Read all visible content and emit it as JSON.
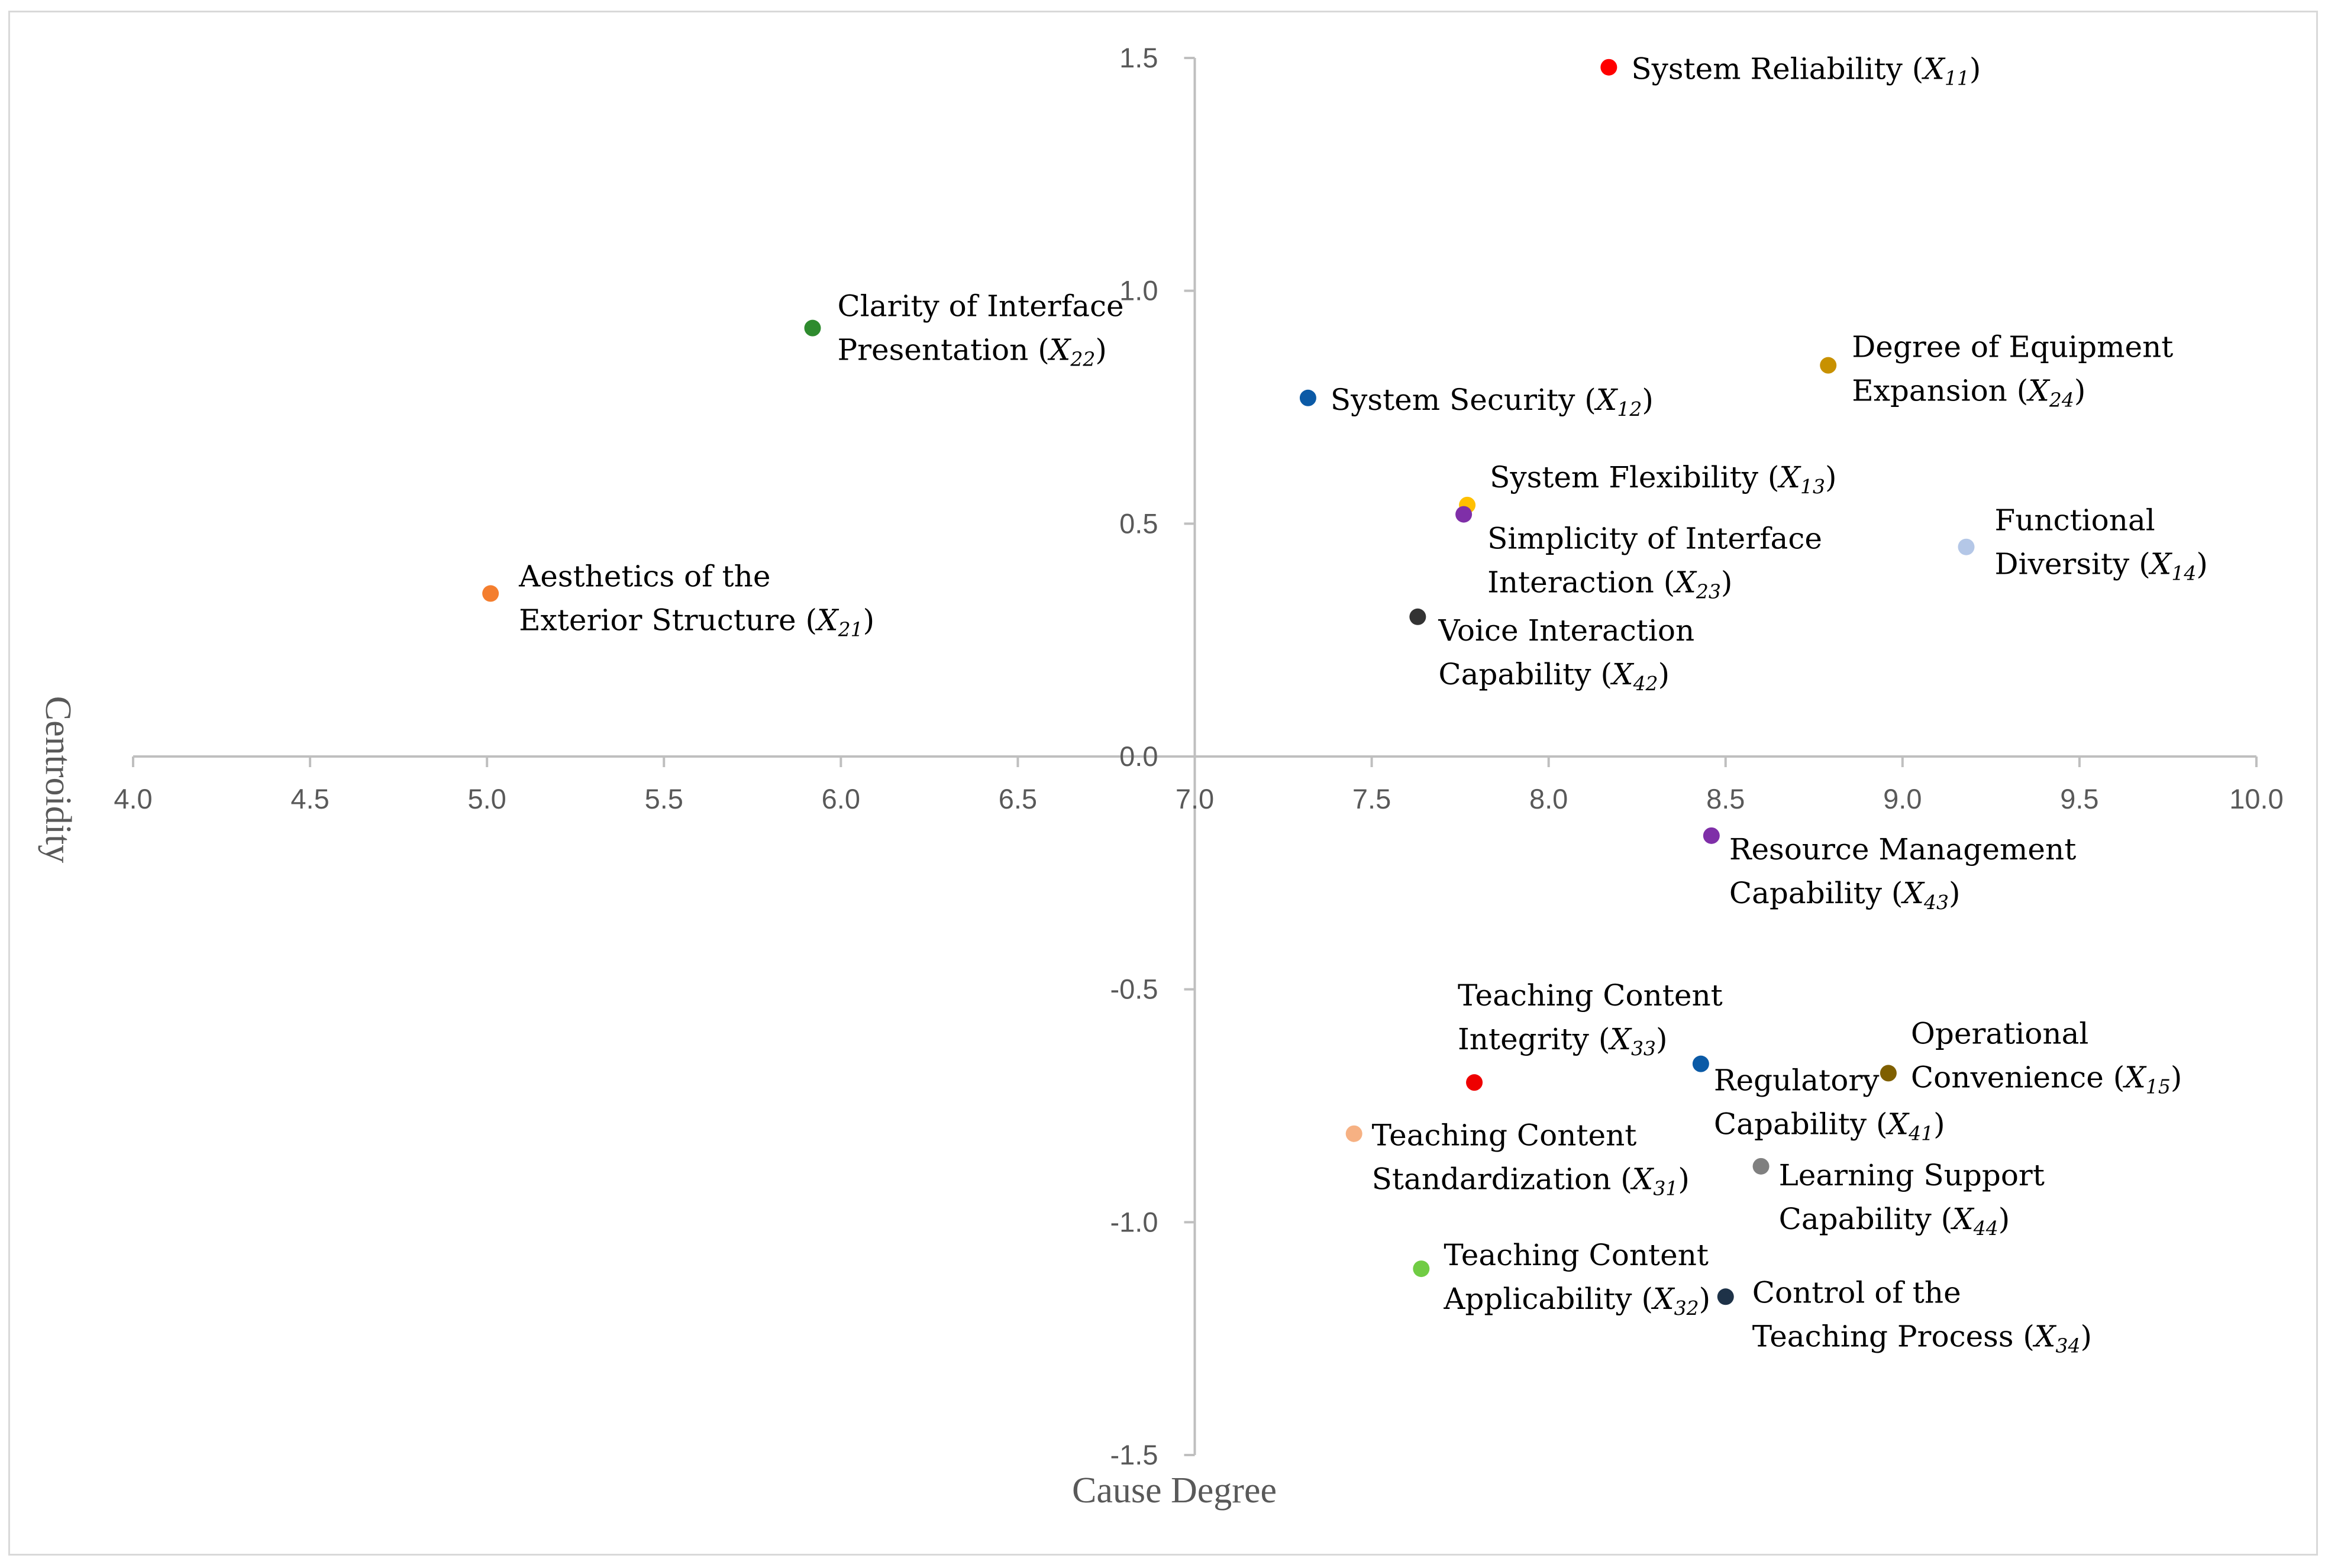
{
  "chart_data": {
    "type": "scatter",
    "title": "",
    "xlabel": "Cause Degree",
    "ylabel": "Centroidity",
    "xlim": [
      4.0,
      10.0
    ],
    "ylim": [
      -1.5,
      1.5
    ],
    "x_axis_crosses_y_at": 0.0,
    "y_axis_crosses_x_at": 7.0,
    "x_ticks": [
      "4.0",
      "4.5",
      "5.0",
      "5.5",
      "6.0",
      "6.5",
      "7.0",
      "7.5",
      "8.0",
      "8.5",
      "9.0",
      "9.5",
      "10.0"
    ],
    "y_ticks": [
      "1.5",
      "1.0",
      "0.5",
      "0.0",
      "-0.5",
      "-1.0",
      "-1.5"
    ],
    "points": [
      {
        "name": "System Reliability",
        "code": "X11",
        "var": "X",
        "sub": "11",
        "x": 8.17,
        "y": 1.48,
        "color": "#ff0000",
        "label_lines": [
          "System Reliability"
        ]
      },
      {
        "name": "System Security",
        "code": "X12",
        "var": "X",
        "sub": "12",
        "x": 7.32,
        "y": 0.77,
        "color": "#0b5aa6",
        "label_lines": [
          "System Security"
        ]
      },
      {
        "name": "System Flexibility",
        "code": "X13",
        "var": "X",
        "sub": "13",
        "x": 7.77,
        "y": 0.54,
        "color": "#ffc000",
        "label_lines": [
          "System Flexibility"
        ]
      },
      {
        "name": "Functional Diversity",
        "code": "X14",
        "var": "X",
        "sub": "14",
        "x": 9.18,
        "y": 0.45,
        "color": "#b4c7e7",
        "label_lines": [
          "Functional",
          "Diversity"
        ]
      },
      {
        "name": "Operational Convenience",
        "code": "X15",
        "var": "X",
        "sub": "15",
        "x": 8.96,
        "y": -0.68,
        "color": "#7f5f00",
        "label_lines": [
          "Operational",
          "Convenience"
        ]
      },
      {
        "name": "Aesthetics of the Exterior Structure",
        "code": "X21",
        "var": "X",
        "sub": "21",
        "x": 5.01,
        "y": 0.35,
        "color": "#f47e2e",
        "label_lines": [
          "Aesthetics of the",
          "Exterior Structure"
        ]
      },
      {
        "name": "Clarity of Interface Presentation",
        "code": "X22",
        "var": "X",
        "sub": "22",
        "x": 5.92,
        "y": 0.92,
        "color": "#2e8b2e",
        "label_lines": [
          "Clarity of Interface",
          "Presentation"
        ]
      },
      {
        "name": "Simplicity of Interface Interaction",
        "code": "X23",
        "var": "X",
        "sub": "23",
        "x": 7.76,
        "y": 0.52,
        "color": "#7f2fa8",
        "label_lines": [
          "Simplicity of Interface",
          "Interaction"
        ]
      },
      {
        "name": "Degree of Equipment Expansion",
        "code": "X24",
        "var": "X",
        "sub": "24",
        "x": 8.79,
        "y": 0.84,
        "color": "#c89100",
        "label_lines": [
          "Degree of Equipment",
          "Expansion"
        ]
      },
      {
        "name": "Teaching Content Standardization",
        "code": "X31",
        "var": "X",
        "sub": "31",
        "x": 7.45,
        "y": -0.81,
        "color": "#f6b183",
        "label_lines": [
          "Teaching Content",
          "Standardization"
        ]
      },
      {
        "name": "Teaching Content Applicability",
        "code": "X32",
        "var": "X",
        "sub": "32",
        "x": 7.64,
        "y": -1.1,
        "color": "#70cc44",
        "label_lines": [
          "Teaching Content",
          "Applicability"
        ]
      },
      {
        "name": "Teaching Content Integrity",
        "code": "X33",
        "var": "X",
        "sub": "33",
        "x": 7.79,
        "y": -0.7,
        "color": "#ee0000",
        "label_lines": [
          "Teaching Content",
          "Integrity"
        ]
      },
      {
        "name": "Control of the Teaching Process",
        "code": "X34",
        "var": "X",
        "sub": "34",
        "x": 8.5,
        "y": -1.16,
        "color": "#1e3248",
        "label_lines": [
          "Control of the",
          "Teaching Process"
        ]
      },
      {
        "name": "Regulatory Capability",
        "code": "X41",
        "var": "X",
        "sub": "41",
        "x": 8.43,
        "y": -0.66,
        "color": "#0b5aa6",
        "label_lines": [
          "Regulatory",
          "Capability"
        ]
      },
      {
        "name": "Voice Interaction Capability",
        "code": "X42",
        "var": "X",
        "sub": "42",
        "x": 7.63,
        "y": 0.3,
        "color": "#333333",
        "label_lines": [
          "Voice Interaction",
          "Capability"
        ]
      },
      {
        "name": "Resource Management Capability",
        "code": "X43",
        "var": "X",
        "sub": "43",
        "x": 8.46,
        "y": -0.17,
        "color": "#7f2fa8",
        "label_lines": [
          "Resource Management",
          "Capability"
        ]
      },
      {
        "name": "Learning Support Capability",
        "code": "X44",
        "var": "X",
        "sub": "44",
        "x": 8.6,
        "y": -0.88,
        "color": "#808080",
        "label_lines": [
          "Learning Support",
          "Capability"
        ]
      }
    ]
  }
}
